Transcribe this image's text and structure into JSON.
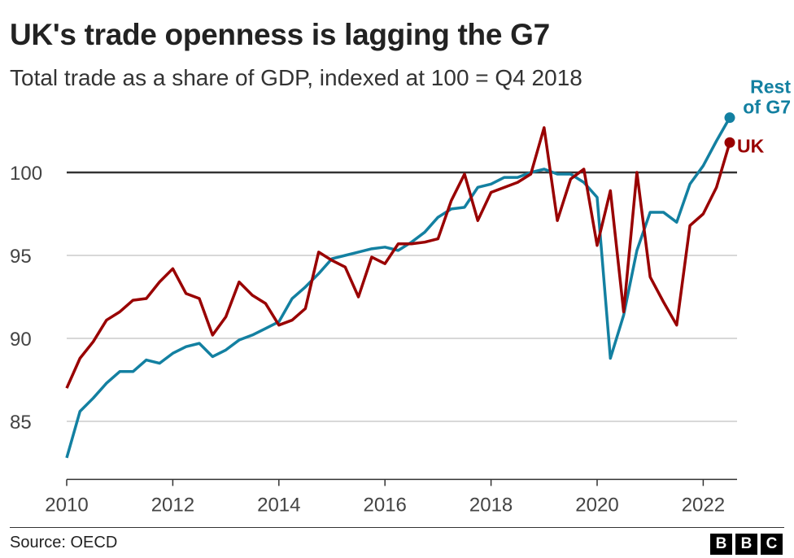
{
  "title": "UK's trade openness is lagging the G7",
  "subtitle": "Total trade as a share of GDP, indexed at 100 = Q4 2018",
  "source": "Source: OECD",
  "logo": "BBC",
  "chart_data": {
    "type": "line",
    "title": "UK's trade openness is lagging the G7",
    "subtitle": "Total trade as a share of GDP, indexed at 100 = Q4 2018",
    "x_start": 2010,
    "x_step": 0.25,
    "xlim": [
      2010,
      2022.5
    ],
    "ylim": [
      81.5,
      104
    ],
    "x_ticks": [
      2010,
      2012,
      2014,
      2016,
      2018,
      2020,
      2022
    ],
    "y_ticks": [
      85,
      90,
      95,
      100
    ],
    "reference_line": 100,
    "grid": true,
    "legend": "direct labels at line ends, right",
    "series": [
      {
        "name": "UK",
        "color": "#990000",
        "label_lines": [
          "UK"
        ],
        "values": [
          87.0,
          88.8,
          89.8,
          91.1,
          91.6,
          92.3,
          92.4,
          93.4,
          94.2,
          92.7,
          92.4,
          90.2,
          91.3,
          93.4,
          92.6,
          92.1,
          90.8,
          91.1,
          91.8,
          95.2,
          94.7,
          94.3,
          92.5,
          94.9,
          94.5,
          95.7,
          95.7,
          95.8,
          96.0,
          98.3,
          99.9,
          97.1,
          98.8,
          99.1,
          99.4,
          99.9,
          102.7,
          97.1,
          99.6,
          100.2,
          95.6,
          98.9,
          91.6,
          100.0,
          93.7,
          92.2,
          90.8,
          96.8,
          97.5,
          99.1,
          101.8
        ]
      },
      {
        "name": "Rest of G7",
        "color": "#1380A1",
        "label_lines": [
          "Rest",
          "of G7"
        ],
        "values": [
          82.8,
          85.6,
          86.4,
          87.3,
          88.0,
          88.0,
          88.7,
          88.5,
          89.1,
          89.5,
          89.7,
          88.9,
          89.3,
          89.9,
          90.2,
          90.6,
          91.0,
          92.4,
          93.1,
          93.9,
          94.8,
          95.0,
          95.2,
          95.4,
          95.5,
          95.3,
          95.8,
          96.4,
          97.3,
          97.8,
          97.9,
          99.1,
          99.3,
          99.7,
          99.7,
          100.0,
          100.2,
          99.9,
          99.9,
          99.4,
          98.5,
          88.8,
          91.4,
          95.3,
          97.6,
          97.6,
          97.0,
          99.3,
          100.4,
          101.9,
          103.3
        ]
      }
    ]
  }
}
